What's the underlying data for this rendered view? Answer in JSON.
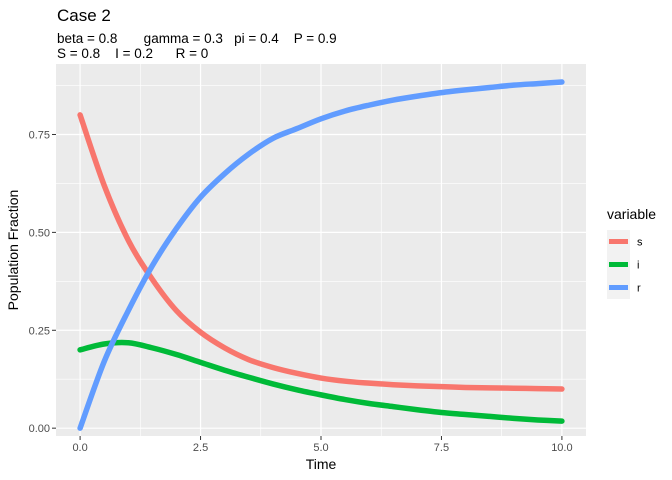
{
  "chart_data": {
    "type": "line",
    "title": "Case 2",
    "subtitle_lines": [
      "beta = 0.8       gamma = 0.3   pi = 0.4    P = 0.9",
      "S = 0.8    I = 0.2      R = 0"
    ],
    "xlabel": "Time",
    "ylabel": "Population Fraction",
    "xlim": [
      -0.5,
      10.5
    ],
    "ylim": [
      -0.02,
      0.93
    ],
    "x_ticks": [
      0,
      2.5,
      5,
      7.5,
      10
    ],
    "x_tick_labels": [
      "0.0",
      "2.5",
      "5.0",
      "7.5",
      "10.0"
    ],
    "y_ticks": [
      0,
      0.25,
      0.5,
      0.75
    ],
    "y_tick_labels": [
      "0.00",
      "0.25",
      "0.50",
      "0.75"
    ],
    "grid": true,
    "legend": {
      "title": "variable",
      "position": "right"
    },
    "series": [
      {
        "name": "s",
        "color": "#F8766D",
        "x": [
          0,
          0.5,
          1,
          1.5,
          2,
          2.5,
          3,
          3.5,
          4,
          4.5,
          5,
          5.5,
          6,
          6.5,
          7,
          7.5,
          8,
          8.5,
          9,
          9.5,
          10
        ],
        "y": [
          0.8,
          0.62,
          0.48,
          0.38,
          0.3,
          0.245,
          0.205,
          0.175,
          0.155,
          0.14,
          0.128,
          0.12,
          0.115,
          0.111,
          0.108,
          0.106,
          0.104,
          0.103,
          0.102,
          0.101,
          0.1
        ]
      },
      {
        "name": "i",
        "color": "#00BA38",
        "x": [
          0,
          0.5,
          1,
          1.5,
          2,
          2.5,
          3,
          3.5,
          4,
          4.5,
          5,
          5.5,
          6,
          6.5,
          7,
          7.5,
          8,
          8.5,
          9,
          9.5,
          10
        ],
        "y": [
          0.2,
          0.215,
          0.218,
          0.205,
          0.188,
          0.168,
          0.148,
          0.13,
          0.113,
          0.098,
          0.085,
          0.073,
          0.063,
          0.055,
          0.047,
          0.04,
          0.035,
          0.03,
          0.025,
          0.021,
          0.018
        ]
      },
      {
        "name": "r",
        "color": "#619CFF",
        "x": [
          0,
          0.5,
          1,
          1.5,
          2,
          2.5,
          3,
          3.5,
          4,
          4.5,
          5,
          5.5,
          6,
          6.5,
          7,
          7.5,
          8,
          8.5,
          9,
          9.5,
          10
        ],
        "y": [
          0.0,
          0.17,
          0.3,
          0.415,
          0.51,
          0.59,
          0.65,
          0.7,
          0.74,
          0.765,
          0.79,
          0.81,
          0.825,
          0.838,
          0.848,
          0.857,
          0.864,
          0.87,
          0.876,
          0.88,
          0.884
        ]
      }
    ]
  }
}
